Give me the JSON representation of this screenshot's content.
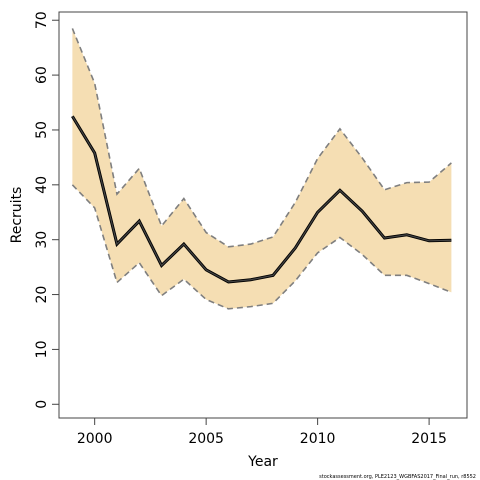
{
  "chart_data": {
    "type": "area",
    "title": "",
    "xlabel": "Year",
    "ylabel": "Recruits",
    "x": [
      1999,
      2000,
      2001,
      2002,
      2003,
      2004,
      2005,
      2006,
      2007,
      2008,
      2009,
      2010,
      2011,
      2012,
      2013,
      2014,
      2015,
      2016
    ],
    "series": [
      {
        "values": [
          52.5,
          45.8,
          29.2,
          33.4,
          25.3,
          29.2,
          24.5,
          22.3,
          22.7,
          23.5,
          28.5,
          35.0,
          39.0,
          35.2,
          30.3,
          30.9,
          29.8,
          29.9
        ]
      },
      {
        "values": [
          68.5,
          58.5,
          38.3,
          43.0,
          32.5,
          37.5,
          31.3,
          28.7,
          29.2,
          30.5,
          36.8,
          44.8,
          50.2,
          44.9,
          39.1,
          40.4,
          40.5,
          44.0
        ]
      },
      {
        "values": [
          40.0,
          35.8,
          22.2,
          25.8,
          19.8,
          22.8,
          19.1,
          17.4,
          17.8,
          18.4,
          22.5,
          27.6,
          30.4,
          27.3,
          23.5,
          23.5,
          22.0,
          20.4
        ]
      }
    ],
    "xlim": [
      1998.4,
      2016.7
    ],
    "ylim": [
      -2.5,
      71.5
    ],
    "xticks": [
      "2000",
      "2005",
      "2010",
      "2015"
    ],
    "yticks": [
      "0",
      "10",
      "20",
      "30",
      "40",
      "50",
      "60",
      "70"
    ],
    "grid": false,
    "colors": {
      "band_fill": "#F5DEB3",
      "band_edge": "#7F7F7F",
      "main_line": "#444444",
      "main_line_edge": "#000000"
    }
  },
  "footnote": "stockassessment.org, PLE2123_WGBFAS2017_Final_run, r8552"
}
